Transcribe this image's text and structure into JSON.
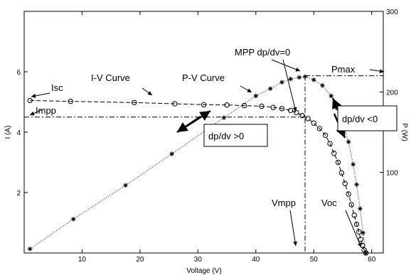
{
  "chart_data": {
    "type": "line",
    "xlabel": "Voltage (V)",
    "ylabel_left": "I (A)",
    "ylabel_right": "P (W)",
    "xlim": [
      0,
      62
    ],
    "ylim_left": [
      0,
      8
    ],
    "ylim_right": [
      0,
      300
    ],
    "x_ticks": [
      10,
      20,
      30,
      40,
      50,
      60
    ],
    "y_left_ticks": [
      2,
      4,
      6
    ],
    "y_right_ticks": [
      100,
      200,
      300
    ],
    "grid": false,
    "series": [
      {
        "name": "I-V Curve",
        "axis": "left",
        "marker": "circle",
        "line_style": "dashed",
        "x": [
          1,
          8,
          19,
          26,
          31,
          35,
          38,
          41,
          43,
          44.5,
          46,
          47,
          48,
          49,
          50,
          51,
          52,
          52.8,
          53.5,
          54.2,
          54.8,
          55.4,
          56,
          56.5,
          57,
          57.4,
          57.8,
          58.1,
          58.4,
          58.7,
          59
        ],
        "y": [
          5.05,
          5.02,
          4.98,
          4.94,
          4.91,
          4.9,
          4.88,
          4.86,
          4.82,
          4.78,
          4.72,
          4.65,
          4.55,
          4.45,
          4.3,
          4.12,
          3.9,
          3.62,
          3.3,
          3.0,
          2.65,
          2.3,
          1.95,
          1.6,
          1.25,
          0.95,
          0.7,
          0.45,
          0.25,
          0.1,
          0
        ]
      },
      {
        "name": "P-V Curve",
        "axis": "right",
        "marker": "star",
        "line_style": "dotted",
        "x": [
          1,
          8.5,
          17.5,
          25.5,
          34.5,
          40,
          42.5,
          44.5,
          46,
          47.5,
          48.5,
          50,
          51.5,
          53,
          54,
          55,
          56,
          56.8,
          57.4,
          58,
          58.5,
          59
        ],
        "y": [
          5,
          42,
          84,
          123,
          168,
          195,
          204,
          212,
          216,
          218,
          219,
          215,
          208,
          195,
          180,
          162,
          138,
          110,
          85,
          55,
          25,
          0
        ]
      }
    ],
    "reference_lines": {
      "Isc": 5.05,
      "Impp": 4.5,
      "Vmpp": 48.5,
      "Pmax": 220
    },
    "annotations": {
      "isc": "Isc",
      "impp": "Impp",
      "iv_curve": "I-V Curve",
      "pv_curve": "P-V Curve",
      "mpp": "MPP dp/dv=0",
      "pmax": "Pmax",
      "dpdv_pos": "dp/dv >0",
      "dpdv_neg": "dp/dv <0",
      "vmpp": "Vmpp",
      "voc": "Voc"
    }
  }
}
